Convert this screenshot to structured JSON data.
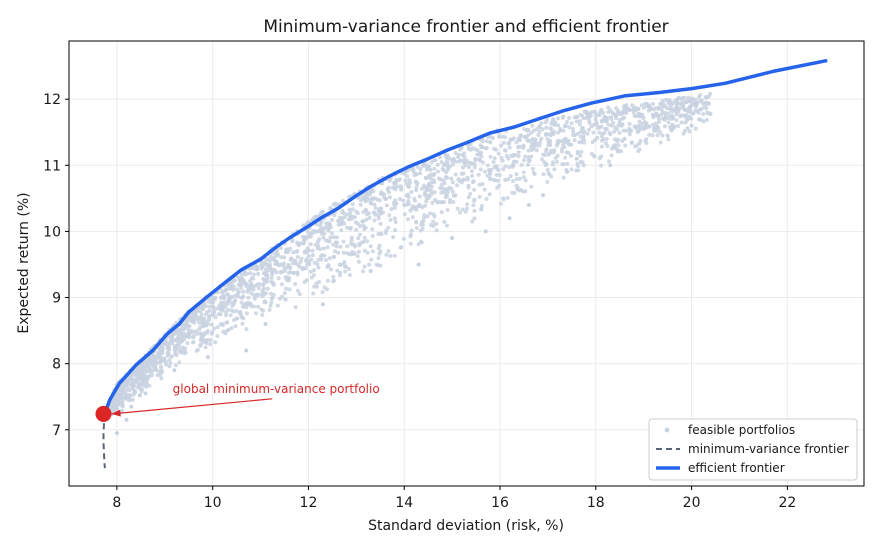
{
  "chart_data": {
    "type": "scatter",
    "title": "Minimum-variance frontier and efficient frontier",
    "xlabel": "Standard deviation (risk, %)",
    "ylabel": "Expected return (%)",
    "xlim": [
      7.0,
      23.6
    ],
    "ylim": [
      6.15,
      12.88
    ],
    "xticks": [
      8,
      10,
      12,
      14,
      16,
      18,
      20,
      22
    ],
    "yticks": [
      7,
      8,
      9,
      10,
      11,
      12
    ],
    "grid": true,
    "legend_position": "bottom-right",
    "legend": [
      {
        "label": "feasible portfolios",
        "style": "scatter",
        "color": "#c9d2e0"
      },
      {
        "label": "minimum-variance frontier",
        "style": "dashed",
        "color": "#5a6478"
      },
      {
        "label": "efficient frontier",
        "style": "solid",
        "color": "#2563eb"
      }
    ],
    "series": [
      {
        "name": "feasible portfolios",
        "type": "scatter-cloud",
        "color": "#c9d2e0",
        "envelope_upper": [
          [
            7.75,
            7.25
          ],
          [
            8.0,
            7.7
          ],
          [
            8.5,
            8.05
          ],
          [
            9.0,
            8.45
          ],
          [
            9.5,
            8.8
          ],
          [
            10.0,
            9.1
          ],
          [
            10.5,
            9.35
          ],
          [
            11.0,
            9.6
          ],
          [
            11.5,
            9.9
          ],
          [
            12.0,
            10.15
          ],
          [
            12.5,
            10.4
          ],
          [
            13.0,
            10.6
          ],
          [
            13.5,
            10.8
          ],
          [
            14.0,
            10.95
          ],
          [
            14.5,
            11.1
          ],
          [
            15.0,
            11.2
          ],
          [
            15.5,
            11.4
          ],
          [
            16.0,
            11.55
          ],
          [
            16.5,
            11.55
          ],
          [
            17.0,
            11.7
          ],
          [
            18.0,
            11.85
          ],
          [
            19.0,
            11.95
          ],
          [
            20.0,
            12.05
          ],
          [
            20.4,
            12.1
          ]
        ],
        "envelope_lower": [
          [
            7.75,
            7.25
          ],
          [
            8.0,
            7.2
          ],
          [
            8.5,
            7.5
          ],
          [
            9.0,
            7.8
          ],
          [
            9.5,
            8.1
          ],
          [
            10.0,
            8.25
          ],
          [
            10.5,
            8.4
          ],
          [
            11.0,
            8.6
          ],
          [
            11.5,
            8.75
          ],
          [
            12.0,
            8.9
          ],
          [
            12.5,
            9.1
          ],
          [
            13.0,
            9.3
          ],
          [
            13.5,
            9.45
          ],
          [
            14.0,
            9.65
          ],
          [
            14.5,
            9.8
          ],
          [
            15.0,
            10.0
          ],
          [
            15.5,
            10.15
          ],
          [
            16.0,
            10.3
          ],
          [
            16.5,
            10.45
          ],
          [
            17.0,
            10.6
          ],
          [
            18.0,
            10.9
          ],
          [
            19.0,
            11.2
          ],
          [
            20.0,
            11.5
          ],
          [
            20.4,
            11.6
          ]
        ],
        "sparse_points": [
          [
            17.2,
            11.35
          ],
          [
            17.6,
            11.1
          ],
          [
            18.2,
            11.55
          ],
          [
            18.3,
            11.0
          ],
          [
            18.6,
            11.4
          ],
          [
            19.0,
            11.55
          ],
          [
            19.3,
            11.75
          ],
          [
            19.5,
            11.45
          ],
          [
            20.0,
            11.6
          ],
          [
            20.1,
            11.95
          ],
          [
            20.2,
            11.85
          ],
          [
            16.6,
            10.4
          ],
          [
            16.9,
            10.55
          ],
          [
            17.4,
            10.9
          ],
          [
            16.2,
            10.2
          ],
          [
            15.7,
            10.0
          ],
          [
            15.0,
            9.9
          ],
          [
            14.3,
            9.5
          ],
          [
            13.3,
            9.4
          ],
          [
            12.3,
            8.9
          ],
          [
            11.1,
            8.6
          ],
          [
            10.7,
            8.2
          ],
          [
            9.9,
            8.1
          ],
          [
            9.2,
            7.9
          ],
          [
            8.6,
            7.55
          ],
          [
            8.2,
            7.15
          ],
          [
            8.0,
            6.95
          ],
          [
            8.3,
            7.35
          ]
        ]
      },
      {
        "name": "minimum-variance frontier",
        "type": "line",
        "style": "dashed",
        "color": "#5a6478",
        "x": [
          7.75,
          7.73,
          7.72,
          7.72,
          7.73,
          7.74,
          7.75
        ],
        "y": [
          7.25,
          7.1,
          6.95,
          6.8,
          6.65,
          6.5,
          6.42
        ]
      },
      {
        "name": "efficient frontier",
        "type": "line",
        "style": "solid",
        "color": "#2563eb",
        "x": [
          7.75,
          7.85,
          8.05,
          8.4,
          8.75,
          9.05,
          9.3,
          9.5,
          9.9,
          10.3,
          10.6,
          11.0,
          11.3,
          11.6,
          12.0,
          12.3,
          12.6,
          13.0,
          13.3,
          13.7,
          14.1,
          14.5,
          14.9,
          15.3,
          15.8,
          16.3,
          16.8,
          17.3,
          17.9,
          18.6,
          19.3,
          20.0,
          20.7,
          21.7,
          22.8
        ],
        "y": [
          7.25,
          7.45,
          7.7,
          7.98,
          8.2,
          8.45,
          8.6,
          8.78,
          9.02,
          9.25,
          9.42,
          9.58,
          9.75,
          9.9,
          10.08,
          10.22,
          10.34,
          10.54,
          10.68,
          10.84,
          10.98,
          11.1,
          11.23,
          11.34,
          11.49,
          11.58,
          11.7,
          11.82,
          11.94,
          12.05,
          12.1,
          12.16,
          12.24,
          12.42,
          12.58
        ]
      },
      {
        "name": "global minimum-variance portfolio",
        "type": "point",
        "color": "#dc2626",
        "x": [
          7.72
        ],
        "y": [
          7.24
        ]
      }
    ],
    "annotations": [
      {
        "text": "global minimum-variance portfolio",
        "x": 10.7,
        "y": 7.62,
        "target_x": 7.72,
        "target_y": 7.24,
        "color": "#d62728"
      }
    ]
  }
}
